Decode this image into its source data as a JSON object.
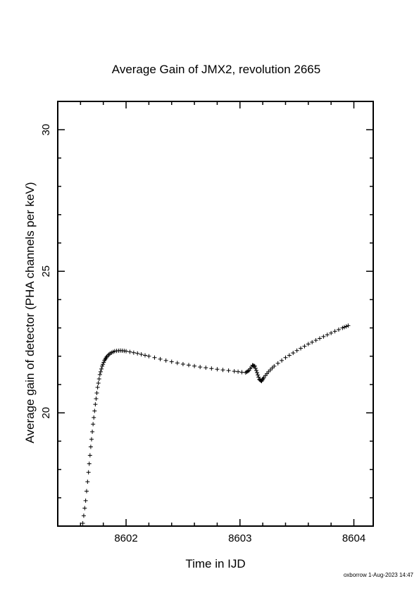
{
  "chart_data": {
    "type": "scatter",
    "marker": "plus",
    "title": "Average Gain of JMX2, revolution 2665",
    "xlabel": "Time in IJD",
    "ylabel": "Average gain of detector (PHA channels per keV)",
    "xlim": [
      8601.4,
      8604.17
    ],
    "ylim": [
      16,
      31
    ],
    "xticks": [
      {
        "value": 8602,
        "label": "8602"
      },
      {
        "value": 8603,
        "label": "8603"
      },
      {
        "value": 8604,
        "label": "8604"
      }
    ],
    "yticks": [
      {
        "value": 20,
        "label": "20"
      },
      {
        "value": 25,
        "label": "25"
      },
      {
        "value": 30,
        "label": "30"
      }
    ],
    "grid": false,
    "series": [
      {
        "color": "#000000",
        "x": [
          8601.62,
          8601.645,
          8601.67,
          8601.69,
          8601.71,
          8601.73,
          8601.75,
          8601.77,
          8601.79,
          8601.81,
          8601.83,
          8601.86,
          8601.9,
          8601.95,
          8602.0,
          8602.1,
          8602.2,
          8602.35,
          8602.5,
          8602.65,
          8602.8,
          8602.95,
          8603.05,
          8603.08,
          8603.11,
          8603.13,
          8603.15,
          8603.17,
          8603.19,
          8603.21,
          8603.25,
          8603.3,
          8603.4,
          8603.5,
          8603.6,
          8603.7,
          8603.8,
          8603.9,
          8603.95
        ],
        "y": [
          16.1,
          16.9,
          17.9,
          18.8,
          19.6,
          20.3,
          20.9,
          21.35,
          21.65,
          21.85,
          21.98,
          22.1,
          22.18,
          22.2,
          22.18,
          22.1,
          22.0,
          21.85,
          21.72,
          21.62,
          21.54,
          21.47,
          21.42,
          21.5,
          21.68,
          21.65,
          21.42,
          21.18,
          21.12,
          21.25,
          21.45,
          21.65,
          21.95,
          22.2,
          22.43,
          22.63,
          22.82,
          23.0,
          23.08
        ]
      }
    ]
  },
  "footer": "oxborrow 1-Aug-2023 14:47"
}
